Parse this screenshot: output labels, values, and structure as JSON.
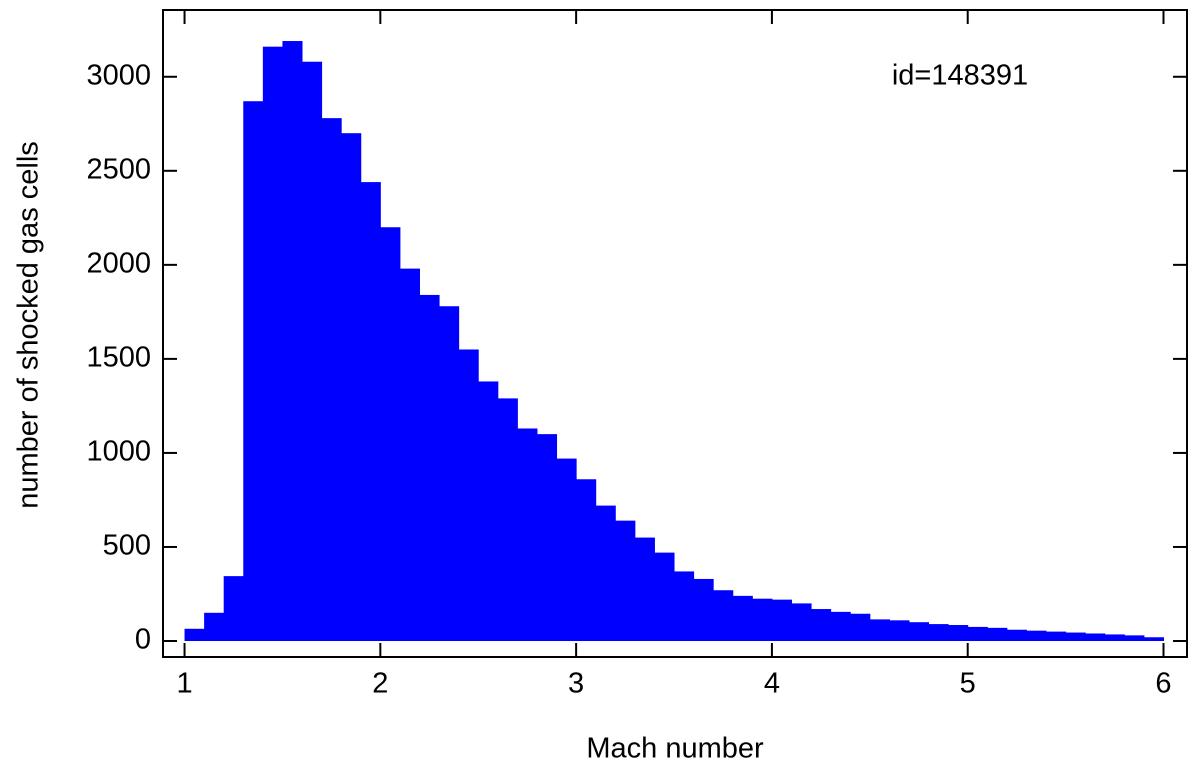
{
  "chart_data": {
    "type": "histogram",
    "x_label": "Mach number",
    "y_label": "number of shocked gas cells",
    "annotation": "id=148391",
    "color": "#0000ff",
    "bins": [
      1.0,
      1.1,
      1.2,
      1.3,
      1.4,
      1.5,
      1.6,
      1.7,
      1.8,
      1.9,
      2.0,
      2.1,
      2.2,
      2.3,
      2.4,
      2.5,
      2.6,
      2.7,
      2.8,
      2.9,
      3.0,
      3.1,
      3.2,
      3.3,
      3.4,
      3.5,
      3.6,
      3.7,
      3.8,
      3.9,
      4.0,
      4.1,
      4.2,
      4.3,
      4.4,
      4.5,
      4.6,
      4.7,
      4.8,
      4.9,
      5.0,
      5.1,
      5.2,
      5.3,
      5.4,
      5.5,
      5.6,
      5.7,
      5.8,
      5.9,
      6.0
    ],
    "values": [
      65,
      150,
      345,
      2870,
      3160,
      3190,
      3080,
      2780,
      2700,
      2440,
      2200,
      1980,
      1840,
      1780,
      1550,
      1380,
      1290,
      1130,
      1100,
      970,
      860,
      720,
      640,
      550,
      470,
      370,
      330,
      270,
      240,
      225,
      220,
      200,
      170,
      155,
      145,
      115,
      110,
      100,
      90,
      85,
      75,
      70,
      60,
      55,
      50,
      45,
      40,
      35,
      30,
      20
    ],
    "xlim": [
      0.89,
      6.12
    ],
    "ylim": [
      -85,
      3355
    ],
    "xticks": [
      1,
      2,
      3,
      4,
      5,
      6
    ],
    "yticks": [
      0,
      500,
      1000,
      1500,
      2000,
      2500,
      3000
    ]
  }
}
